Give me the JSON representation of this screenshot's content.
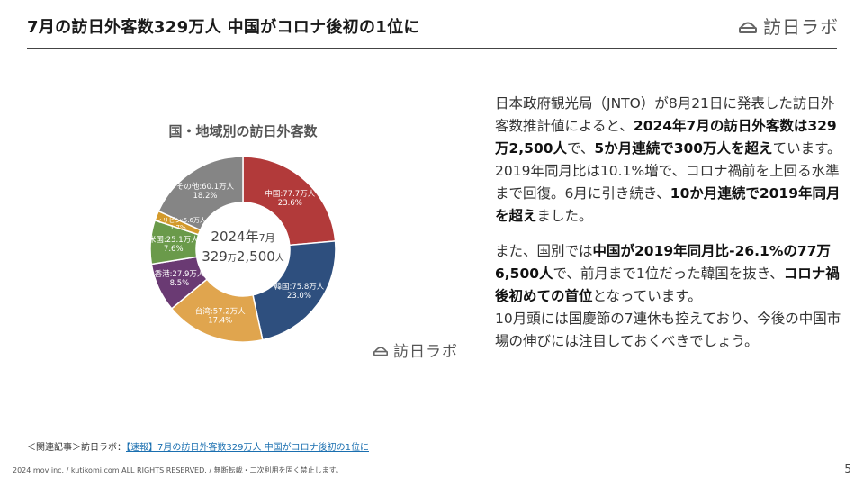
{
  "header": {
    "title": "7月の訪日外客数329万人 中国がコロナ後初の1位に",
    "logo": "訪日ラボ"
  },
  "chart_logo": "訪日ラボ",
  "chart_data": {
    "type": "pie",
    "title": "国・地域別の訪日外客数",
    "center_label": {
      "period": "2024年",
      "month": "7月",
      "total": "329",
      "total_unit": "万",
      "total_rest": "2,500",
      "total_tail": "人"
    },
    "slices": [
      {
        "label": "中国:77.7万人",
        "pct_label": "23.6%",
        "value": 77.7,
        "color": "#b23a3a"
      },
      {
        "label": "韓国:75.8万人",
        "pct_label": "23.0%",
        "value": 75.8,
        "color": "#2e4f7e"
      },
      {
        "label": "台湾:57.2万人",
        "pct_label": "17.4%",
        "value": 57.2,
        "color": "#e0a54e"
      },
      {
        "label": "香港:27.9万人",
        "pct_label": "8.5%",
        "value": 27.9,
        "color": "#6a3a73"
      },
      {
        "label": "米国:25.1万人",
        "pct_label": "7.6%",
        "value": 25.1,
        "color": "#6a9a4a"
      },
      {
        "label": "フィリピン:5.6万人",
        "pct_label": "1.7%",
        "value": 5.6,
        "color": "#d39a2c"
      },
      {
        "label": "その他:60.1万人",
        "pct_label": "18.2%",
        "value": 60.1,
        "color": "#858585"
      }
    ]
  },
  "body": {
    "p1_1": "日本政府観光局（JNTO）が8月21日に発表した訪日外客数推計値によると、",
    "p1_b1": "2024年7月の訪日外客数は329万2,500人",
    "p1_2": "で、",
    "p1_b2": "5か月連続で300万人を超え",
    "p1_3": "ています。",
    "p2_1": "2019年同月比は10.1%増で、コロナ禍前を上回る水準まで回復。6月に引き続き、",
    "p2_b1": "10か月連続で2019年同月を超え",
    "p2_2": "ました。",
    "p3_1": "また、国別では",
    "p3_b1": "中国が2019年同月比-26.1%の77万6,500人",
    "p3_2": "で、前月まで1位だった韓国を抜き、",
    "p3_b2": "コロナ禍後初めての首位",
    "p3_3": "となっています。",
    "p4": "10月頭には国慶節の7連休も控えており、今後の中国市場の伸びには注目しておくべきでしょう。"
  },
  "related": {
    "prefix": "＜関連記事＞訪日ラボ：",
    "link": "【速報】7月の訪日外客数329万人 中国がコロナ後初の1位に"
  },
  "footer": {
    "copyright": "2024 mov inc. / kutikomi.com ALL RIGHTS RESERVED. / 無断転載・二次利用を固く禁止します。",
    "page": "5"
  }
}
